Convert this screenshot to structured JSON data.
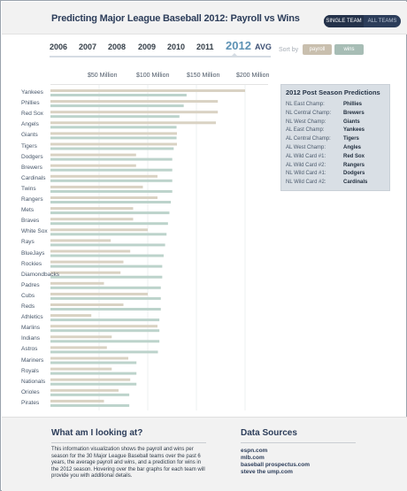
{
  "header": {
    "title": "Predicting Major League Baseball 2012: Payroll vs Wins",
    "toggle_single": "SINGLE TEAM",
    "toggle_all": "ALL TEAMS"
  },
  "years": [
    "2006",
    "2007",
    "2008",
    "2009",
    "2010",
    "2011",
    "2012",
    "AVG"
  ],
  "selected_year": "2012",
  "sort": {
    "label": "Sort by",
    "payroll": "payroll",
    "wins": "wins"
  },
  "colors": {
    "payroll": "#d9d2c3",
    "wins": "#bcd3cb",
    "accent": "#5d92b4",
    "navy": "#2c3d5a"
  },
  "axis": {
    "ticks": [
      "$50 Million",
      "$100 Million",
      "$150 Million",
      "$200 Million"
    ]
  },
  "chart_data": {
    "type": "bar",
    "categories": [
      "Yankees",
      "Phillies",
      "Red Sox",
      "Angels",
      "Giants",
      "Tigers",
      "Dodgers",
      "Brewers",
      "Cardinals",
      "Twins",
      "Rangers",
      "Mets",
      "Braves",
      "White Sox",
      "Rays",
      "BlueJays",
      "Rockies",
      "Diamondbacks",
      "Padres",
      "Cubs",
      "Reds",
      "Athletics",
      "Marlins",
      "Indians",
      "Astros",
      "Mariners",
      "Royals",
      "Nationals",
      "Orioles",
      "Pirates"
    ],
    "series": [
      {
        "name": "payroll",
        "values": [
          200,
          172,
          172,
          170,
          130,
          130,
          88,
          88,
          110,
          95,
          110,
          85,
          85,
          100,
          62,
          82,
          75,
          72,
          55,
          100,
          75,
          42,
          110,
          63,
          58,
          80,
          63,
          82,
          70,
          55
        ]
      },
      {
        "name": "wins",
        "values": [
          95,
          93,
          90,
          88,
          88,
          86,
          85,
          85,
          85,
          85,
          84,
          83,
          82,
          81,
          80,
          79,
          78,
          78,
          77,
          77,
          77,
          76,
          76,
          76,
          75,
          60,
          60,
          60,
          55,
          55
        ]
      }
    ],
    "xlim": [
      0,
      220
    ]
  },
  "predictions": {
    "title": "2012 Post Season Predictions",
    "rows": [
      {
        "label": "NL East Champ:",
        "team": "Phillies"
      },
      {
        "label": "NL Central Champ:",
        "team": "Brewers"
      },
      {
        "label": "NL West Champ:",
        "team": "Giants"
      },
      {
        "label": "AL East Champ:",
        "team": "Yankees"
      },
      {
        "label": "AL Central Champ:",
        "team": "Tigers"
      },
      {
        "label": "AL West Champ:",
        "team": "Angles"
      },
      {
        "label": "AL Wild Card #1:",
        "team": "Red Sox"
      },
      {
        "label": "AL Wild Card #2:",
        "team": "Rangers"
      },
      {
        "label": "NL Wild Card #1:",
        "team": "Dodgers"
      },
      {
        "label": "NL Wild Card #2:",
        "team": "Cardinals"
      }
    ]
  },
  "footer": {
    "about_title": "What am I looking at?",
    "about_text": "This information visualization shows the payroll and wins per season for the 30 Major League Baseball teams over the past 6 years, the average payroll and wins, and a prediction for wins in the 2012 season. Hovering over the bar graphs for each team will provide you with additional details.",
    "sources_title": "Data Sources",
    "sources": [
      "espn.com",
      "mlb.com",
      "baseball prospectus.com",
      "steve the ump.com"
    ]
  }
}
